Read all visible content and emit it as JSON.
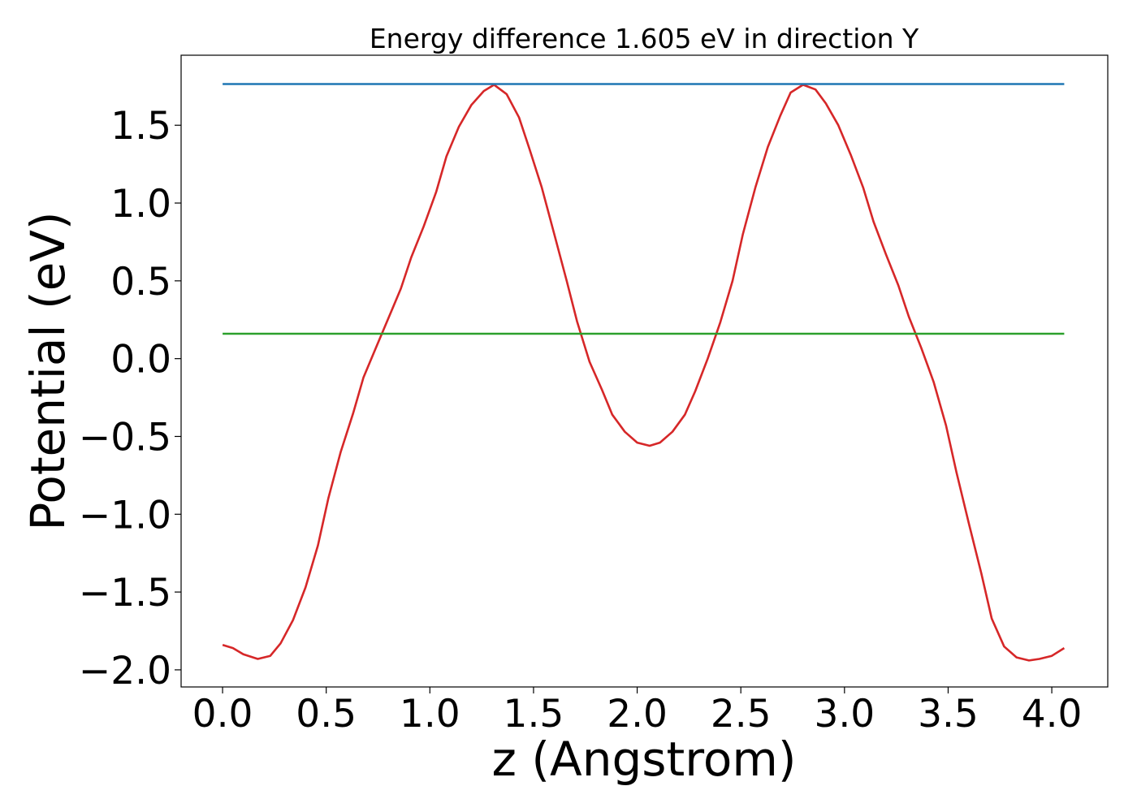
{
  "chart_data": {
    "type": "line",
    "title": "Energy difference 1.605 eV in direction Y",
    "xlabel": "z (Angstrom)",
    "ylabel": "Potential (eV)",
    "xlim": [
      -0.2,
      4.27
    ],
    "ylim": [
      -2.11,
      1.95
    ],
    "xticks": [
      0.0,
      0.5,
      1.0,
      1.5,
      2.0,
      2.5,
      3.0,
      3.5,
      4.0
    ],
    "xtick_labels": [
      "0.0",
      "0.5",
      "1.0",
      "1.5",
      "2.0",
      "2.5",
      "3.0",
      "3.5",
      "4.0"
    ],
    "yticks": [
      -2.0,
      -1.5,
      -1.0,
      -0.5,
      0.0,
      0.5,
      1.0,
      1.5
    ],
    "ytick_labels": [
      "−2.0",
      "−1.5",
      "−1.0",
      "−0.5",
      "0.0",
      "0.5",
      "1.0",
      "1.5"
    ],
    "grid": false,
    "series": [
      {
        "color": "#d62728",
        "x": [
          0.0,
          0.05,
          0.1,
          0.17,
          0.23,
          0.28,
          0.34,
          0.4,
          0.46,
          0.51,
          0.57,
          0.63,
          0.68,
          0.74,
          0.8,
          0.86,
          0.91,
          0.97,
          1.03,
          1.08,
          1.14,
          1.2,
          1.26,
          1.31,
          1.37,
          1.43,
          1.48,
          1.54,
          1.6,
          1.66,
          1.71,
          1.77,
          1.83,
          1.88,
          1.94,
          2.0,
          2.06,
          2.11,
          2.17,
          2.23,
          2.28,
          2.34,
          2.4,
          2.46,
          2.51,
          2.57,
          2.63,
          2.69,
          2.74,
          2.8,
          2.86,
          2.91,
          2.97,
          3.03,
          3.09,
          3.14,
          3.2,
          3.26,
          3.31,
          3.37,
          3.43,
          3.49,
          3.54,
          3.6,
          3.66,
          3.71,
          3.77,
          3.83,
          3.89,
          3.94,
          4.0,
          4.06
        ],
        "y": [
          -1.84,
          -1.86,
          -1.9,
          -1.93,
          -1.91,
          -1.83,
          -1.68,
          -1.47,
          -1.2,
          -0.9,
          -0.6,
          -0.35,
          -0.12,
          0.07,
          0.26,
          0.45,
          0.65,
          0.85,
          1.07,
          1.3,
          1.49,
          1.63,
          1.72,
          1.76,
          1.7,
          1.55,
          1.35,
          1.1,
          0.8,
          0.5,
          0.24,
          -0.02,
          -0.2,
          -0.36,
          -0.47,
          -0.54,
          -0.56,
          -0.54,
          -0.47,
          -0.36,
          -0.21,
          0.0,
          0.23,
          0.5,
          0.8,
          1.1,
          1.36,
          1.56,
          1.71,
          1.76,
          1.73,
          1.64,
          1.5,
          1.31,
          1.1,
          0.88,
          0.67,
          0.47,
          0.27,
          0.07,
          -0.15,
          -0.43,
          -0.73,
          -1.06,
          -1.38,
          -1.67,
          -1.85,
          -1.92,
          -1.94,
          -1.93,
          -1.91,
          -1.86
        ]
      },
      {
        "color": "#1f77b4",
        "x": [
          0.0,
          4.06
        ],
        "y": [
          1.765,
          1.765
        ]
      },
      {
        "color": "#2ca02c",
        "x": [
          0.0,
          4.06
        ],
        "y": [
          0.16,
          0.16
        ]
      }
    ]
  }
}
